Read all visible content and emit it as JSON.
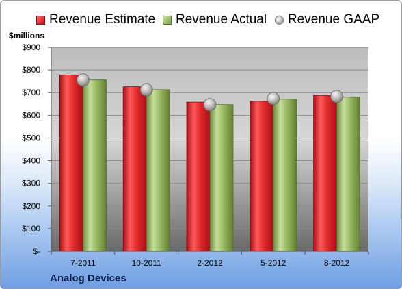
{
  "chart_data": {
    "type": "bar",
    "title": "",
    "ylabel": "$millions",
    "xlabel": "",
    "ylim": [
      0,
      900
    ],
    "yticks": [
      0,
      100,
      200,
      300,
      400,
      500,
      600,
      700,
      800,
      900
    ],
    "ytick_labels": [
      "$-",
      "$100",
      "$200",
      "$300",
      "$400",
      "$500",
      "$600",
      "$700",
      "$800",
      "$900"
    ],
    "categories": [
      "7-2011",
      "10-2011",
      "2-2012",
      "5-2012",
      "8-2012"
    ],
    "series": [
      {
        "name": "Revenue Estimate",
        "kind": "bar",
        "color": "#d42a2a",
        "values": [
          778,
          726,
          658,
          662,
          688
        ]
      },
      {
        "name": "Revenue Actual",
        "kind": "bar",
        "color": "#94b35a",
        "values": [
          756,
          713,
          647,
          671,
          680
        ]
      },
      {
        "name": "Revenue GAAP",
        "kind": "marker",
        "color": "#b8b8b8",
        "values": [
          756,
          713,
          647,
          674,
          683
        ]
      }
    ],
    "grid": true,
    "legend_position": "top"
  },
  "footer": {
    "company": "Analog Devices"
  }
}
